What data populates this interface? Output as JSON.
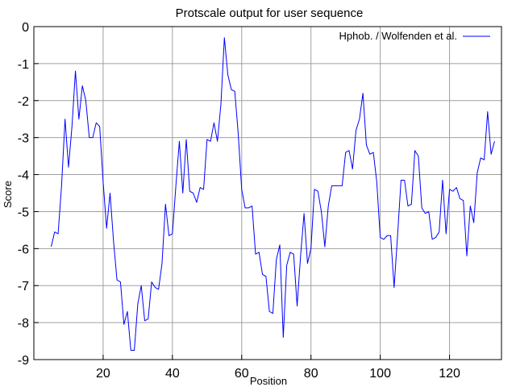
{
  "chart_data": {
    "type": "line",
    "title": "Protscale output for  user  sequence",
    "xlabel": "Position",
    "ylabel": "Score",
    "xlim": [
      0,
      135
    ],
    "ylim": [
      -9,
      0
    ],
    "xticks": [
      20,
      40,
      60,
      80,
      100,
      120
    ],
    "yticks": [
      0,
      -1,
      -2,
      -3,
      -4,
      -5,
      -6,
      -7,
      -8,
      -9
    ],
    "grid": true,
    "legend_position": "top-right",
    "series": [
      {
        "name": "Hphob.  /  Wolfenden  et  al.",
        "color": "#0000ff",
        "x": [
          5,
          6,
          7,
          8,
          9,
          10,
          11,
          12,
          13,
          14,
          15,
          16,
          17,
          18,
          19,
          20,
          21,
          22,
          23,
          24,
          25,
          26,
          27,
          28,
          29,
          30,
          31,
          32,
          33,
          34,
          35,
          36,
          37,
          38,
          39,
          40,
          41,
          42,
          43,
          44,
          45,
          46,
          47,
          48,
          49,
          50,
          51,
          52,
          53,
          54,
          55,
          56,
          57,
          58,
          59,
          60,
          61,
          62,
          63,
          64,
          65,
          66,
          67,
          68,
          69,
          70,
          71,
          72,
          73,
          74,
          75,
          76,
          77,
          78,
          79,
          80,
          81,
          82,
          83,
          84,
          85,
          86,
          87,
          88,
          89,
          90,
          91,
          92,
          93,
          94,
          95,
          96,
          97,
          98,
          99,
          100,
          101,
          102,
          103,
          104,
          105,
          106,
          107,
          108,
          109,
          110,
          111,
          112,
          113,
          114,
          115,
          116,
          117,
          118,
          119,
          120,
          121,
          122,
          123,
          124,
          125,
          126,
          127,
          128,
          129,
          130,
          131,
          132,
          133
        ],
        "values": [
          -5.95,
          -5.55,
          -5.6,
          -4.3,
          -2.5,
          -3.8,
          -2.7,
          -1.2,
          -2.5,
          -1.6,
          -2.0,
          -3.0,
          -3.0,
          -2.6,
          -2.7,
          -4.2,
          -5.45,
          -4.5,
          -5.8,
          -6.85,
          -6.9,
          -8.05,
          -7.7,
          -8.75,
          -8.75,
          -7.5,
          -7.0,
          -7.95,
          -7.9,
          -6.9,
          -7.05,
          -7.1,
          -6.4,
          -4.8,
          -5.65,
          -5.6,
          -4.3,
          -3.1,
          -4.5,
          -3.05,
          -4.45,
          -4.5,
          -4.75,
          -4.35,
          -4.4,
          -3.05,
          -3.1,
          -2.6,
          -3.1,
          -2.1,
          -0.3,
          -1.3,
          -1.7,
          -1.75,
          -2.9,
          -4.4,
          -4.9,
          -4.9,
          -4.85,
          -6.15,
          -6.1,
          -6.7,
          -6.75,
          -7.7,
          -7.75,
          -6.3,
          -5.9,
          -8.4,
          -6.45,
          -6.1,
          -6.15,
          -7.55,
          -6.2,
          -5.05,
          -6.4,
          -6.0,
          -4.4,
          -4.45,
          -5.0,
          -5.95,
          -4.85,
          -4.3,
          -4.3,
          -4.3,
          -4.3,
          -3.4,
          -3.35,
          -3.85,
          -2.8,
          -2.5,
          -1.8,
          -3.2,
          -3.45,
          -3.4,
          -4.2,
          -5.7,
          -5.75,
          -5.65,
          -5.65,
          -7.05,
          -5.65,
          -4.15,
          -4.15,
          -4.85,
          -4.8,
          -3.35,
          -3.5,
          -4.9,
          -5.05,
          -5.0,
          -5.75,
          -5.7,
          -5.55,
          -4.15,
          -5.6,
          -4.4,
          -4.45,
          -4.35,
          -4.65,
          -4.7,
          -6.2,
          -4.85,
          -5.3,
          -3.95,
          -3.55,
          -3.6,
          -2.3,
          -3.45,
          -3.1
        ]
      }
    ]
  }
}
